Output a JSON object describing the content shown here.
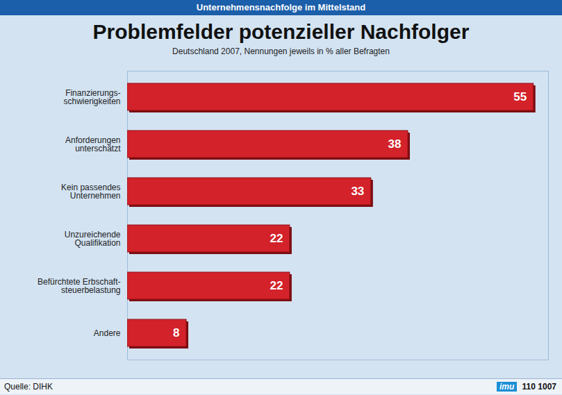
{
  "chart_data": {
    "type": "bar",
    "orientation": "horizontal",
    "header": "Unternehmensnachfolge im Mittelstand",
    "title": "Problemfelder potenzieller Nachfolger",
    "subtitle": "Deutschland 2007, Nennungen jeweils in % aller Befragten",
    "categories": [
      "Finanzierungs-\nschwierigkeiten",
      "Anforderungen\nunterschätzt",
      "Kein passendes\nUnternehmen",
      "Unzureichende\nQualifikation",
      "Befürchtete Erbschaft-\nsteuerbelastung",
      "Andere"
    ],
    "values": [
      55,
      38,
      33,
      22,
      22,
      8
    ],
    "color": "#d3222a",
    "xlim": [
      0,
      57
    ],
    "xticks": [],
    "grid": false,
    "data_labels": true,
    "tick_labels": "y",
    "source": "Quelle: DIHK",
    "logo": "imu",
    "code": "110 1007"
  }
}
